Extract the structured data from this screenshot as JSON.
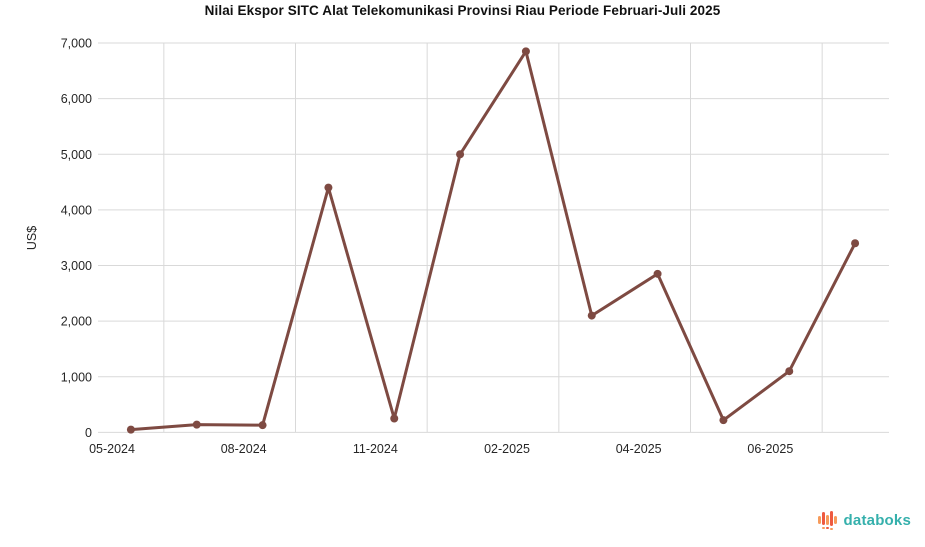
{
  "title": "Nilai Ekspor SITC Alat Telekomunikasi Provinsi Riau Periode Februari-Juli 2025",
  "branding": {
    "logo_text": "databoks"
  },
  "colors": {
    "line": "#7e4a42",
    "marker": "#7e4a42",
    "grid": "#d9d9d9",
    "axis_text": "#262626",
    "logo_teal": "#35b0ac",
    "logo_orange_dark": "#ee5a40",
    "logo_orange_light": "#f79b5b"
  },
  "chart_data": {
    "type": "line",
    "title": "Nilai Ekspor SITC Alat Telekomunikasi Provinsi Riau Periode Februari-Juli 2025",
    "xlabel": "",
    "ylabel": "US$",
    "ylim": [
      0,
      7000
    ],
    "grid": true,
    "legend": "none",
    "y_tick_values": [
      0,
      1000,
      2000,
      3000,
      4000,
      5000,
      6000,
      7000
    ],
    "y_tick_labels": [
      "0",
      "1,000",
      "2,000",
      "3,000",
      "4,000",
      "5,000",
      "6,000",
      "7,000"
    ],
    "x_tick_labels": [
      "05-2024",
      "08-2024",
      "11-2024",
      "02-2025",
      "04-2025",
      "06-2025"
    ],
    "x_tick_positions": [
      0,
      2,
      4,
      6,
      8,
      10
    ],
    "series": [
      {
        "name": "Nilai Ekspor (US$)",
        "values": [
          50,
          140,
          130,
          4400,
          250,
          5000,
          6850,
          2100,
          2850,
          220,
          1100,
          3400
        ]
      }
    ]
  }
}
